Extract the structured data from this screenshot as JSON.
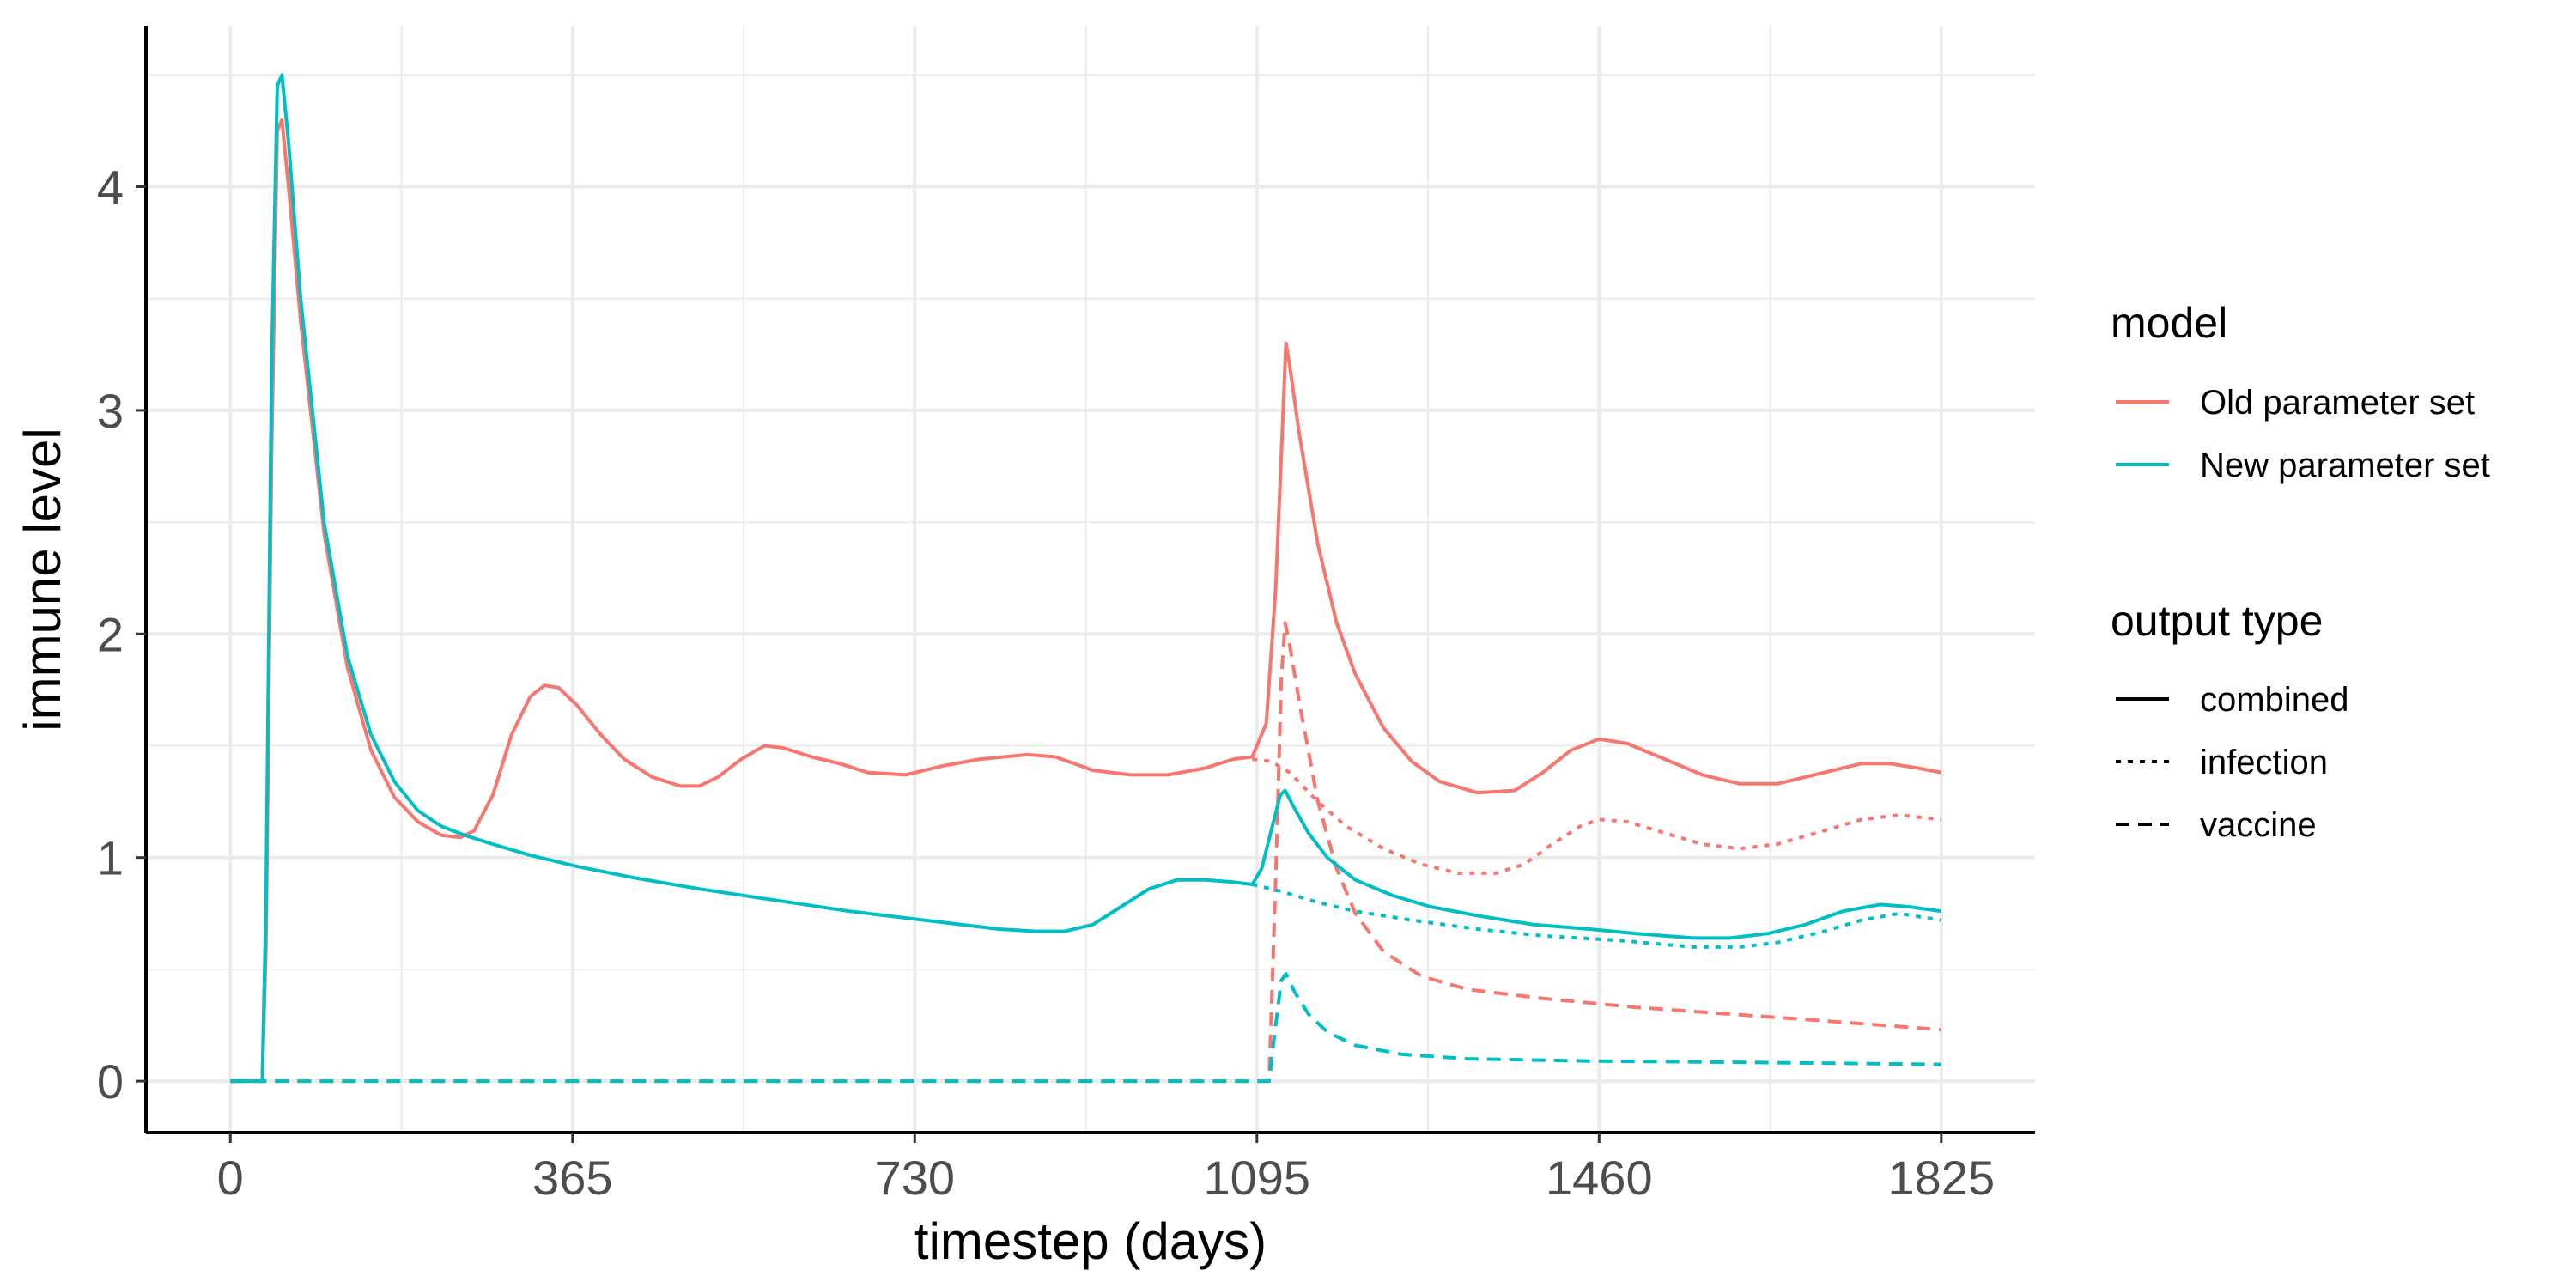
{
  "chart_data": {
    "type": "line",
    "title": "",
    "xlabel": "timestep (days)",
    "ylabel": "immune level",
    "xlim": [
      -90,
      1925
    ],
    "ylim": [
      -0.23,
      4.72
    ],
    "x_ticks": [
      0,
      365,
      730,
      1095,
      1460,
      1825
    ],
    "x_minor_ticks": [
      182.5,
      547.5,
      912.5,
      1277.5,
      1642.5
    ],
    "y_ticks": [
      0,
      1,
      2,
      3,
      4
    ],
    "y_minor_ticks": [
      0.5,
      1.5,
      2.5,
      3.5,
      4.5
    ],
    "grid": true,
    "legend_position": "right",
    "legend": {
      "model_title": "model",
      "output_title": "output type",
      "models": [
        {
          "label": "Old parameter set",
          "color": "#F8766D"
        },
        {
          "label": "New parameter set",
          "color": "#00BFC4"
        }
      ],
      "output_types": [
        {
          "label": "combined",
          "dash": "solid"
        },
        {
          "label": "infection",
          "dash": "dotted"
        },
        {
          "label": "vaccine",
          "dash": "dashed"
        }
      ]
    },
    "series": [
      {
        "model": "Old parameter set",
        "output_type": "combined",
        "color": "#F8766D",
        "points": [
          [
            0,
            0
          ],
          [
            34,
            0
          ],
          [
            38,
            0.6
          ],
          [
            44,
            2.8
          ],
          [
            50,
            4.25
          ],
          [
            55,
            4.3
          ],
          [
            62,
            4.0
          ],
          [
            75,
            3.4
          ],
          [
            100,
            2.45
          ],
          [
            125,
            1.85
          ],
          [
            150,
            1.48
          ],
          [
            175,
            1.27
          ],
          [
            200,
            1.16
          ],
          [
            225,
            1.1
          ],
          [
            245,
            1.09
          ],
          [
            260,
            1.12
          ],
          [
            280,
            1.28
          ],
          [
            300,
            1.55
          ],
          [
            320,
            1.72
          ],
          [
            335,
            1.77
          ],
          [
            350,
            1.76
          ],
          [
            370,
            1.68
          ],
          [
            395,
            1.55
          ],
          [
            420,
            1.44
          ],
          [
            450,
            1.36
          ],
          [
            480,
            1.32
          ],
          [
            500,
            1.32
          ],
          [
            520,
            1.36
          ],
          [
            545,
            1.44
          ],
          [
            570,
            1.5
          ],
          [
            590,
            1.49
          ],
          [
            620,
            1.45
          ],
          [
            650,
            1.42
          ],
          [
            680,
            1.38
          ],
          [
            720,
            1.37
          ],
          [
            760,
            1.41
          ],
          [
            800,
            1.44
          ],
          [
            850,
            1.46
          ],
          [
            880,
            1.45
          ],
          [
            900,
            1.42
          ],
          [
            920,
            1.39
          ],
          [
            960,
            1.37
          ],
          [
            1000,
            1.37
          ],
          [
            1040,
            1.4
          ],
          [
            1070,
            1.44
          ],
          [
            1090,
            1.45
          ],
          [
            1105,
            1.6
          ],
          [
            1115,
            2.2
          ],
          [
            1122,
            2.9
          ],
          [
            1126,
            3.3
          ],
          [
            1130,
            3.2
          ],
          [
            1140,
            2.9
          ],
          [
            1160,
            2.4
          ],
          [
            1180,
            2.05
          ],
          [
            1200,
            1.82
          ],
          [
            1230,
            1.58
          ],
          [
            1260,
            1.43
          ],
          [
            1290,
            1.34
          ],
          [
            1330,
            1.29
          ],
          [
            1370,
            1.3
          ],
          [
            1400,
            1.38
          ],
          [
            1430,
            1.48
          ],
          [
            1460,
            1.53
          ],
          [
            1490,
            1.51
          ],
          [
            1530,
            1.44
          ],
          [
            1570,
            1.37
          ],
          [
            1610,
            1.33
          ],
          [
            1650,
            1.33
          ],
          [
            1700,
            1.38
          ],
          [
            1740,
            1.42
          ],
          [
            1770,
            1.42
          ],
          [
            1800,
            1.4
          ],
          [
            1825,
            1.38
          ]
        ]
      },
      {
        "model": "Old parameter set",
        "output_type": "infection",
        "color": "#F8766D",
        "points": [
          [
            1090,
            1.44
          ],
          [
            1110,
            1.43
          ],
          [
            1130,
            1.38
          ],
          [
            1160,
            1.25
          ],
          [
            1190,
            1.14
          ],
          [
            1230,
            1.04
          ],
          [
            1270,
            0.97
          ],
          [
            1310,
            0.93
          ],
          [
            1350,
            0.93
          ],
          [
            1380,
            0.97
          ],
          [
            1410,
            1.06
          ],
          [
            1440,
            1.14
          ],
          [
            1460,
            1.17
          ],
          [
            1490,
            1.16
          ],
          [
            1530,
            1.11
          ],
          [
            1570,
            1.06
          ],
          [
            1610,
            1.04
          ],
          [
            1650,
            1.06
          ],
          [
            1700,
            1.12
          ],
          [
            1740,
            1.17
          ],
          [
            1780,
            1.19
          ],
          [
            1825,
            1.17
          ]
        ]
      },
      {
        "model": "Old parameter set",
        "output_type": "vaccine",
        "color": "#F8766D",
        "points": [
          [
            0,
            0
          ],
          [
            1108,
            0
          ],
          [
            1115,
            0.9
          ],
          [
            1121,
            1.8
          ],
          [
            1125,
            2.05
          ],
          [
            1130,
            1.95
          ],
          [
            1140,
            1.7
          ],
          [
            1160,
            1.25
          ],
          [
            1180,
            0.95
          ],
          [
            1200,
            0.75
          ],
          [
            1230,
            0.58
          ],
          [
            1270,
            0.47
          ],
          [
            1320,
            0.41
          ],
          [
            1400,
            0.37
          ],
          [
            1500,
            0.33
          ],
          [
            1600,
            0.3
          ],
          [
            1700,
            0.27
          ],
          [
            1825,
            0.23
          ]
        ]
      },
      {
        "model": "New parameter set",
        "output_type": "combined",
        "color": "#00BFC4",
        "points": [
          [
            0,
            0
          ],
          [
            34,
            0
          ],
          [
            38,
            0.8
          ],
          [
            44,
            3.2
          ],
          [
            50,
            4.45
          ],
          [
            55,
            4.5
          ],
          [
            62,
            4.2
          ],
          [
            75,
            3.5
          ],
          [
            100,
            2.5
          ],
          [
            125,
            1.9
          ],
          [
            150,
            1.55
          ],
          [
            175,
            1.34
          ],
          [
            200,
            1.21
          ],
          [
            225,
            1.14
          ],
          [
            250,
            1.1
          ],
          [
            280,
            1.06
          ],
          [
            320,
            1.01
          ],
          [
            370,
            0.96
          ],
          [
            430,
            0.91
          ],
          [
            500,
            0.86
          ],
          [
            580,
            0.81
          ],
          [
            660,
            0.76
          ],
          [
            740,
            0.72
          ],
          [
            820,
            0.68
          ],
          [
            860,
            0.67
          ],
          [
            890,
            0.67
          ],
          [
            920,
            0.7
          ],
          [
            950,
            0.78
          ],
          [
            980,
            0.86
          ],
          [
            1010,
            0.9
          ],
          [
            1040,
            0.9
          ],
          [
            1070,
            0.89
          ],
          [
            1090,
            0.88
          ],
          [
            1100,
            0.95
          ],
          [
            1112,
            1.15
          ],
          [
            1120,
            1.28
          ],
          [
            1125,
            1.3
          ],
          [
            1135,
            1.22
          ],
          [
            1150,
            1.11
          ],
          [
            1170,
            1.0
          ],
          [
            1200,
            0.9
          ],
          [
            1240,
            0.83
          ],
          [
            1280,
            0.78
          ],
          [
            1330,
            0.74
          ],
          [
            1390,
            0.7
          ],
          [
            1450,
            0.68
          ],
          [
            1500,
            0.66
          ],
          [
            1560,
            0.64
          ],
          [
            1600,
            0.64
          ],
          [
            1640,
            0.66
          ],
          [
            1680,
            0.7
          ],
          [
            1720,
            0.76
          ],
          [
            1760,
            0.79
          ],
          [
            1790,
            0.78
          ],
          [
            1825,
            0.76
          ]
        ]
      },
      {
        "model": "New parameter set",
        "output_type": "infection",
        "color": "#00BFC4",
        "points": [
          [
            1090,
            0.88
          ],
          [
            1120,
            0.85
          ],
          [
            1160,
            0.8
          ],
          [
            1200,
            0.76
          ],
          [
            1260,
            0.72
          ],
          [
            1330,
            0.68
          ],
          [
            1400,
            0.65
          ],
          [
            1480,
            0.63
          ],
          [
            1560,
            0.6
          ],
          [
            1610,
            0.6
          ],
          [
            1650,
            0.62
          ],
          [
            1700,
            0.67
          ],
          [
            1740,
            0.72
          ],
          [
            1780,
            0.75
          ],
          [
            1825,
            0.72
          ]
        ]
      },
      {
        "model": "New parameter set",
        "output_type": "vaccine",
        "color": "#00BFC4",
        "points": [
          [
            0,
            0
          ],
          [
            1108,
            0
          ],
          [
            1115,
            0.25
          ],
          [
            1121,
            0.45
          ],
          [
            1126,
            0.48
          ],
          [
            1135,
            0.4
          ],
          [
            1150,
            0.3
          ],
          [
            1170,
            0.22
          ],
          [
            1200,
            0.16
          ],
          [
            1250,
            0.12
          ],
          [
            1320,
            0.1
          ],
          [
            1450,
            0.09
          ],
          [
            1600,
            0.085
          ],
          [
            1825,
            0.075
          ]
        ]
      }
    ]
  }
}
